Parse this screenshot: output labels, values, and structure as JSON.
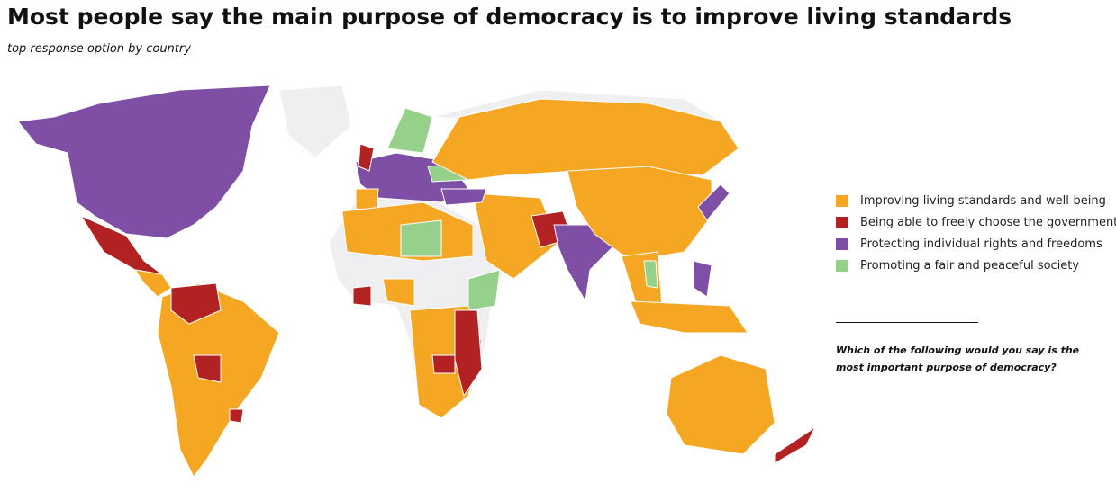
{
  "header": {
    "title": "Most people say the main purpose of democracy is to improve living standards",
    "subtitle": "top response option by country"
  },
  "legend": {
    "items": [
      {
        "label": "Improving living standards and well-being",
        "color": "#f5a623"
      },
      {
        "label": "Being able to freely choose the government",
        "color": "#b22222"
      },
      {
        "label": "Protecting individual rights and freedoms",
        "color": "#7f4fa6"
      },
      {
        "label": "Promoting a fair and peaceful society",
        "color": "#96d18c"
      }
    ]
  },
  "note": {
    "question": "Which of the following would you say is the most important purpose of democracy?"
  }
}
